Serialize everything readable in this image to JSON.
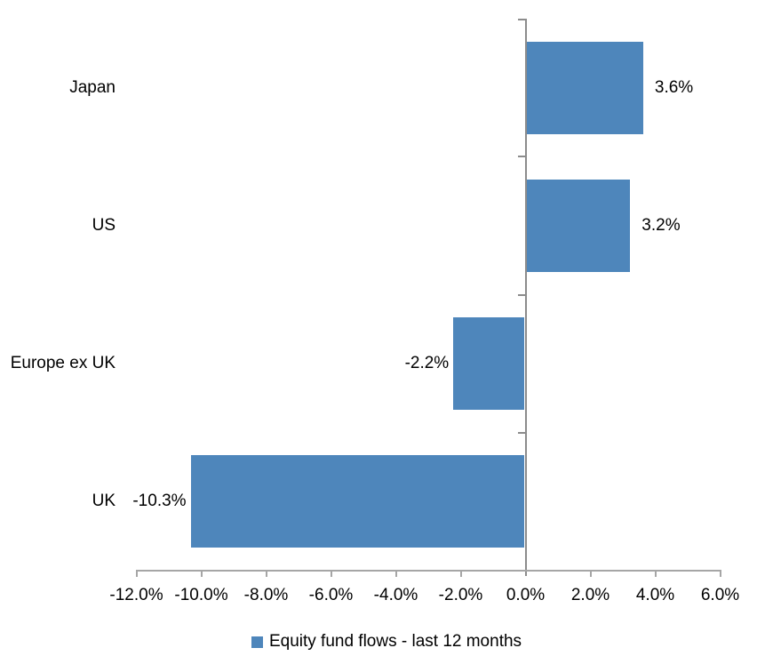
{
  "chart_data": {
    "type": "bar",
    "orientation": "horizontal",
    "title": "",
    "xlabel": "",
    "ylabel": "",
    "categories": [
      "Japan",
      "US",
      "Europe ex UK",
      "UK"
    ],
    "series": [
      {
        "name": "Equity fund flows - last 12 months",
        "values": [
          3.6,
          3.2,
          -2.2,
          -10.3
        ],
        "data_labels": [
          "3.6%",
          "3.2%",
          "-2.2%",
          "-10.3%"
        ],
        "color": "#4E86BB"
      }
    ],
    "x_axis": {
      "min": -12.0,
      "max": 6.0,
      "tick_step": 2.0,
      "tick_values": [
        -12,
        -10,
        -8,
        -6,
        -4,
        -2,
        0,
        2,
        4,
        6
      ],
      "tick_labels": [
        "-12.0%",
        "-10.0%",
        "-8.0%",
        "-6.0%",
        "-4.0%",
        "-2.0%",
        "0.0%",
        "2.0%",
        "4.0%",
        "6.0%"
      ]
    },
    "grid": false,
    "legend_position": "bottom",
    "colors": {
      "bar": "#4E86BB",
      "vertical_axis": "#8c8c8c",
      "horizontal_axis": "#a6a6a6",
      "text": "#000000",
      "background": "#ffffff"
    }
  },
  "legend": {
    "swatch_color": "#4E86BB",
    "label": "Equity fund flows - last 12 months"
  }
}
